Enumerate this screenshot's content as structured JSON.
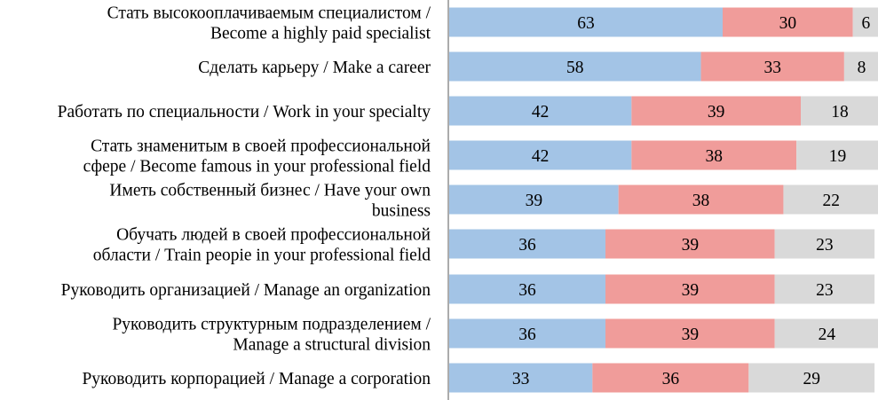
{
  "chart_data": {
    "type": "bar",
    "orientation": "horizontal",
    "stacked": true,
    "categories": [
      [
        "Стать высокооплачиваемым специалистом /",
        "Become a highly paid specialist"
      ],
      [
        "Сделать карьеру / Make a career"
      ],
      [
        "Работать по специальности / Work in your specialty"
      ],
      [
        "Стать знаменитым в своей профессиональной",
        "сфере / Become famous in your professional field"
      ],
      [
        "Иметь собственный бизнес / Have your own",
        "business"
      ],
      [
        "Обучать людей в своей профессиональной",
        "области / Train peopie in your professional field"
      ],
      [
        "Руководить организацией / Manage an organization"
      ],
      [
        "Руководить структурным подразделением /",
        "Manage a structural division"
      ],
      [
        "Руководить корпорацией / Manage a corporation"
      ]
    ],
    "series": [
      {
        "color": "#a3c4e6",
        "values": [
          63,
          58,
          42,
          42,
          39,
          36,
          36,
          36,
          33
        ]
      },
      {
        "color": "#f09c9a",
        "values": [
          30,
          33,
          39,
          38,
          38,
          39,
          39,
          39,
          36
        ]
      },
      {
        "color": "#d9d9d9",
        "values": [
          6,
          8,
          18,
          19,
          22,
          23,
          23,
          24,
          29
        ]
      }
    ],
    "xlim": [
      0,
      99
    ],
    "grid": false,
    "legend": "none",
    "axis_color": "#808080"
  }
}
